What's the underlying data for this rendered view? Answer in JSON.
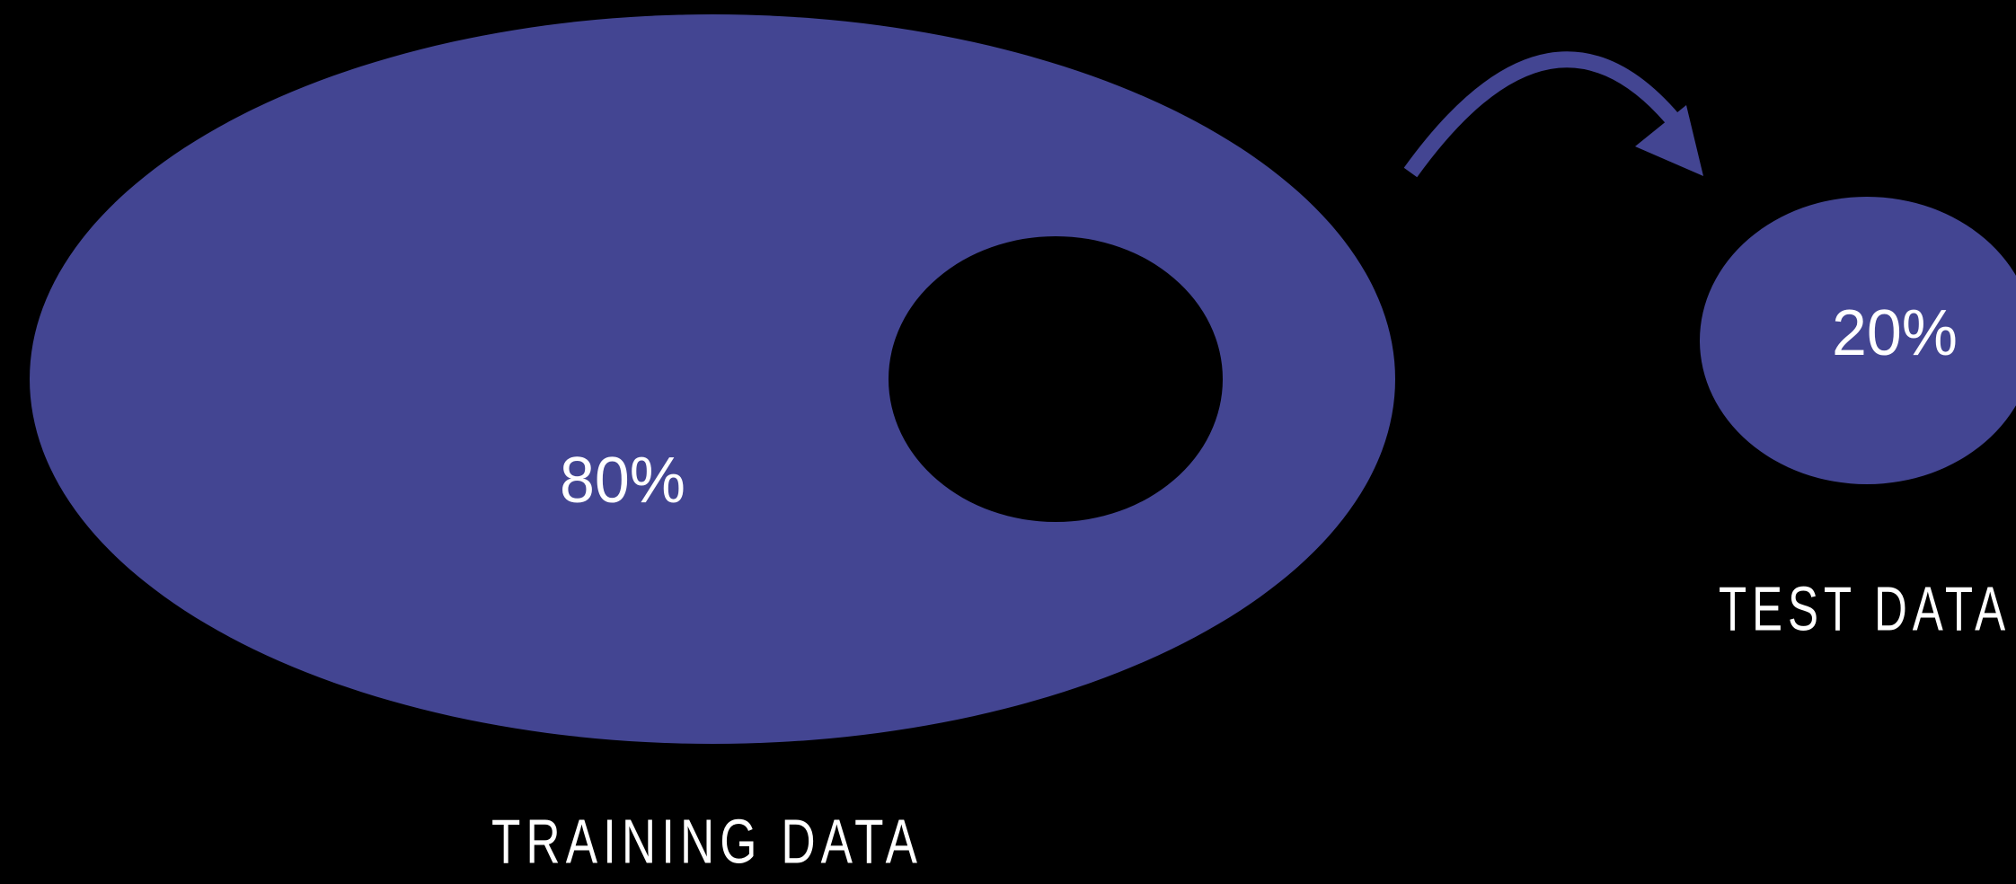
{
  "training": {
    "percent": "80%",
    "label": "TRAINING DATA"
  },
  "test": {
    "percent": "20%",
    "label": "TEST DATA"
  }
}
